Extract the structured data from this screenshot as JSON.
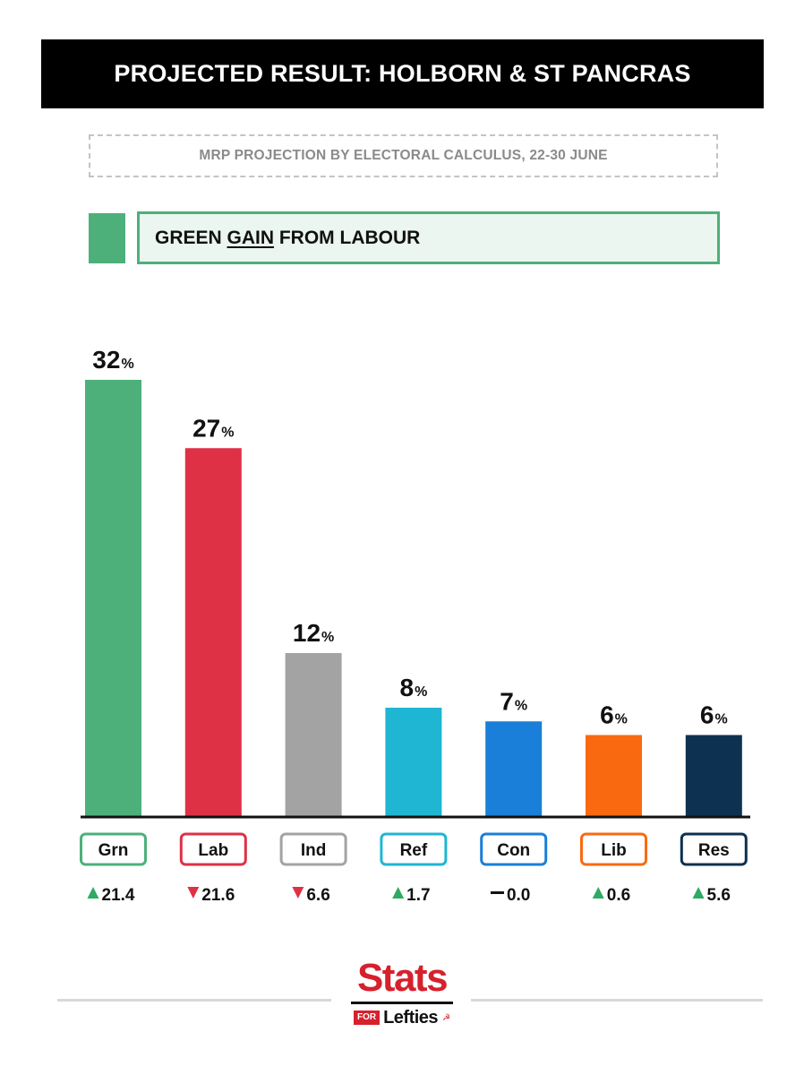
{
  "header": {
    "title": "PROJECTED RESULT: HOLBORN & ST PANCRAS",
    "subtitle": "MRP PROJECTION BY ELECTORAL CALCULUS, 22-30 JUNE"
  },
  "verdict": {
    "prefix": "GREEN ",
    "gain_word": "GAIN",
    "suffix": " FROM LABOUR",
    "color": "#4db07a",
    "background": "#eaf6ef"
  },
  "chart_data": {
    "type": "bar",
    "categories": [
      "Grn",
      "Lab",
      "Ind",
      "Ref",
      "Con",
      "Lib",
      "Res"
    ],
    "values": [
      32,
      27,
      12,
      8,
      7,
      6,
      6
    ],
    "value_suffix": "%",
    "changes": [
      "21.4",
      "21.6",
      "6.6",
      "1.7",
      "0.0",
      "0.6",
      "5.6"
    ],
    "change_direction": [
      "up",
      "down",
      "down",
      "up",
      "none",
      "up",
      "up"
    ],
    "colors": [
      "#4db07a",
      "#de3145",
      "#a3a3a3",
      "#1fb6d3",
      "#1a7fd8",
      "#f96a10",
      "#0d3150"
    ],
    "ylim": [
      0,
      32
    ],
    "grid": false
  },
  "logo": {
    "top": "Stats",
    "for": "FOR",
    "bottom": "Lefties"
  },
  "icons": {
    "up": "triangle-up-icon",
    "down": "triangle-down-icon",
    "none": "dash-icon",
    "logo_mark": "hammer-sickle-icon"
  }
}
